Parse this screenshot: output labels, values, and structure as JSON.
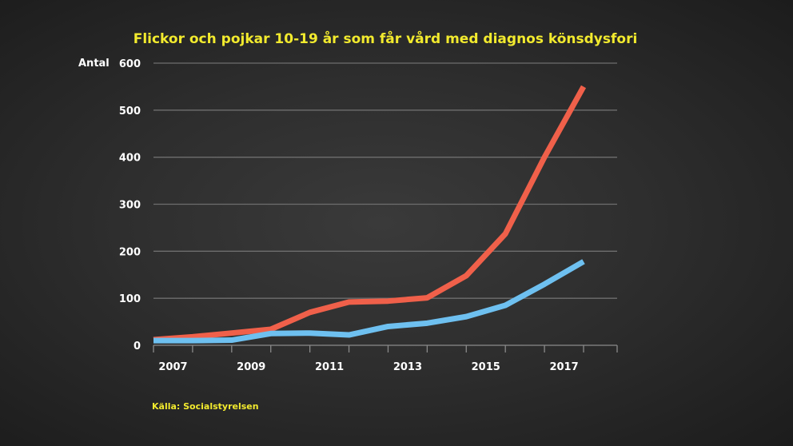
{
  "chart_data": {
    "type": "line",
    "title": "Flickor och pojkar 10-19 år som får vård med diagnos könsdysfori",
    "ylabel": "Antal",
    "xlabel": "",
    "ylim": [
      0,
      600
    ],
    "yticks": [
      0,
      100,
      200,
      300,
      400,
      500,
      600
    ],
    "xlim": [
      2006,
      2017.8
    ],
    "xticks": [
      2007,
      2009,
      2011,
      2013,
      2015,
      2017
    ],
    "x": [
      2006,
      2007,
      2008,
      2009,
      2010,
      2011,
      2012,
      2013,
      2014,
      2015,
      2016,
      2017
    ],
    "series": [
      {
        "color": "#f0604a",
        "values": [
          12,
          18,
          26,
          34,
          70,
          92,
          94,
          101,
          148,
          237,
          400,
          550
        ]
      },
      {
        "color": "#6ec0f0",
        "values": [
          10,
          10,
          11,
          25,
          26,
          22,
          40,
          47,
          61,
          85,
          130,
          178
        ]
      }
    ],
    "grid": true,
    "legend": "none",
    "source": "Källa: Socialstyrelsen"
  }
}
